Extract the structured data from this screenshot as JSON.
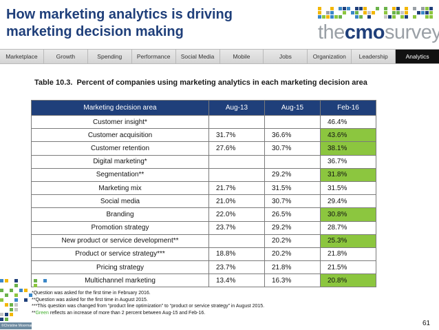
{
  "slide": {
    "title_line1": "How marketing analytics is driving",
    "title_line2": "marketing decision making",
    "page_number": "61",
    "copyright": "©Christine Moorman"
  },
  "logo": {
    "the": "the",
    "cmo": "cmo",
    "survey": "survey"
  },
  "nav": {
    "tabs": [
      {
        "label": "Marketplace",
        "active": false
      },
      {
        "label": "Growth",
        "active": false
      },
      {
        "label": "Spending",
        "active": false
      },
      {
        "label": "Performance",
        "active": false
      },
      {
        "label": "Social Media",
        "active": false
      },
      {
        "label": "Mobile",
        "active": false
      },
      {
        "label": "Jobs",
        "active": false
      },
      {
        "label": "Organization",
        "active": false
      },
      {
        "label": "Leadership",
        "active": false
      },
      {
        "label": "Analytics",
        "active": true
      }
    ]
  },
  "table": {
    "caption_number": "Table 10.3.",
    "caption_text": "Percent of companies using marketing analytics in each marketing decision area",
    "headers": [
      "Marketing decision area",
      "Aug-13",
      "Aug-15",
      "Feb-16"
    ],
    "rows": [
      {
        "area": "Customer insight*",
        "aug13": "",
        "aug15": "",
        "feb16": "46.4%",
        "highlight": false
      },
      {
        "area": "Customer acquisition",
        "aug13": "31.7%",
        "aug15": "36.6%",
        "feb16": "43.6%",
        "highlight": true
      },
      {
        "area": "Customer retention",
        "aug13": "27.6%",
        "aug15": "30.7%",
        "feb16": "38.1%",
        "highlight": true
      },
      {
        "area": "Digital marketing*",
        "aug13": "",
        "aug15": "",
        "feb16": "36.7%",
        "highlight": false
      },
      {
        "area": "Segmentation**",
        "aug13": "",
        "aug15": "29.2%",
        "feb16": "31.8%",
        "highlight": true
      },
      {
        "area": "Marketing mix",
        "aug13": "21.7%",
        "aug15": "31.5%",
        "feb16": "31.5%",
        "highlight": false
      },
      {
        "area": "Social media",
        "aug13": "21.0%",
        "aug15": "30.7%",
        "feb16": "29.4%",
        "highlight": false
      },
      {
        "area": "Branding",
        "aug13": "22.0%",
        "aug15": "26.5%",
        "feb16": "30.8%",
        "highlight": true
      },
      {
        "area": "Promotion strategy",
        "aug13": "23.7%",
        "aug15": "29.2%",
        "feb16": "28.7%",
        "highlight": false
      },
      {
        "area": "New product or service development**",
        "aug13": "",
        "aug15": "20.2%",
        "feb16": "25.3%",
        "highlight": true
      },
      {
        "area": "Product or service strategy***",
        "aug13": "18.8%",
        "aug15": "20.2%",
        "feb16": "21.8%",
        "highlight": false
      },
      {
        "area": "Pricing strategy",
        "aug13": "23.7%",
        "aug15": "21.8%",
        "feb16": "21.5%",
        "highlight": false
      },
      {
        "area": "Multichannel marketing",
        "aug13": "13.4%",
        "aug15": "16.3%",
        "feb16": "20.8%",
        "highlight": true
      }
    ]
  },
  "notes": {
    "line1": "*Question was asked for the first time in February 2016.",
    "line2": "**Question was asked for the first time in August 2015.",
    "line3": "***This question was changed from “product line optimization” to “product or service strategy” in August 2015.",
    "line4_prefix": "**",
    "line4_green": "Green",
    "line4_rest": " reflects an increase of more than 2 percent between Aug-15 and Feb-16."
  },
  "colors": {
    "title": "#1f3f7a",
    "header_bg": "#1f3f7a",
    "highlight": "#8cc63f",
    "nav_active": "#111111"
  }
}
